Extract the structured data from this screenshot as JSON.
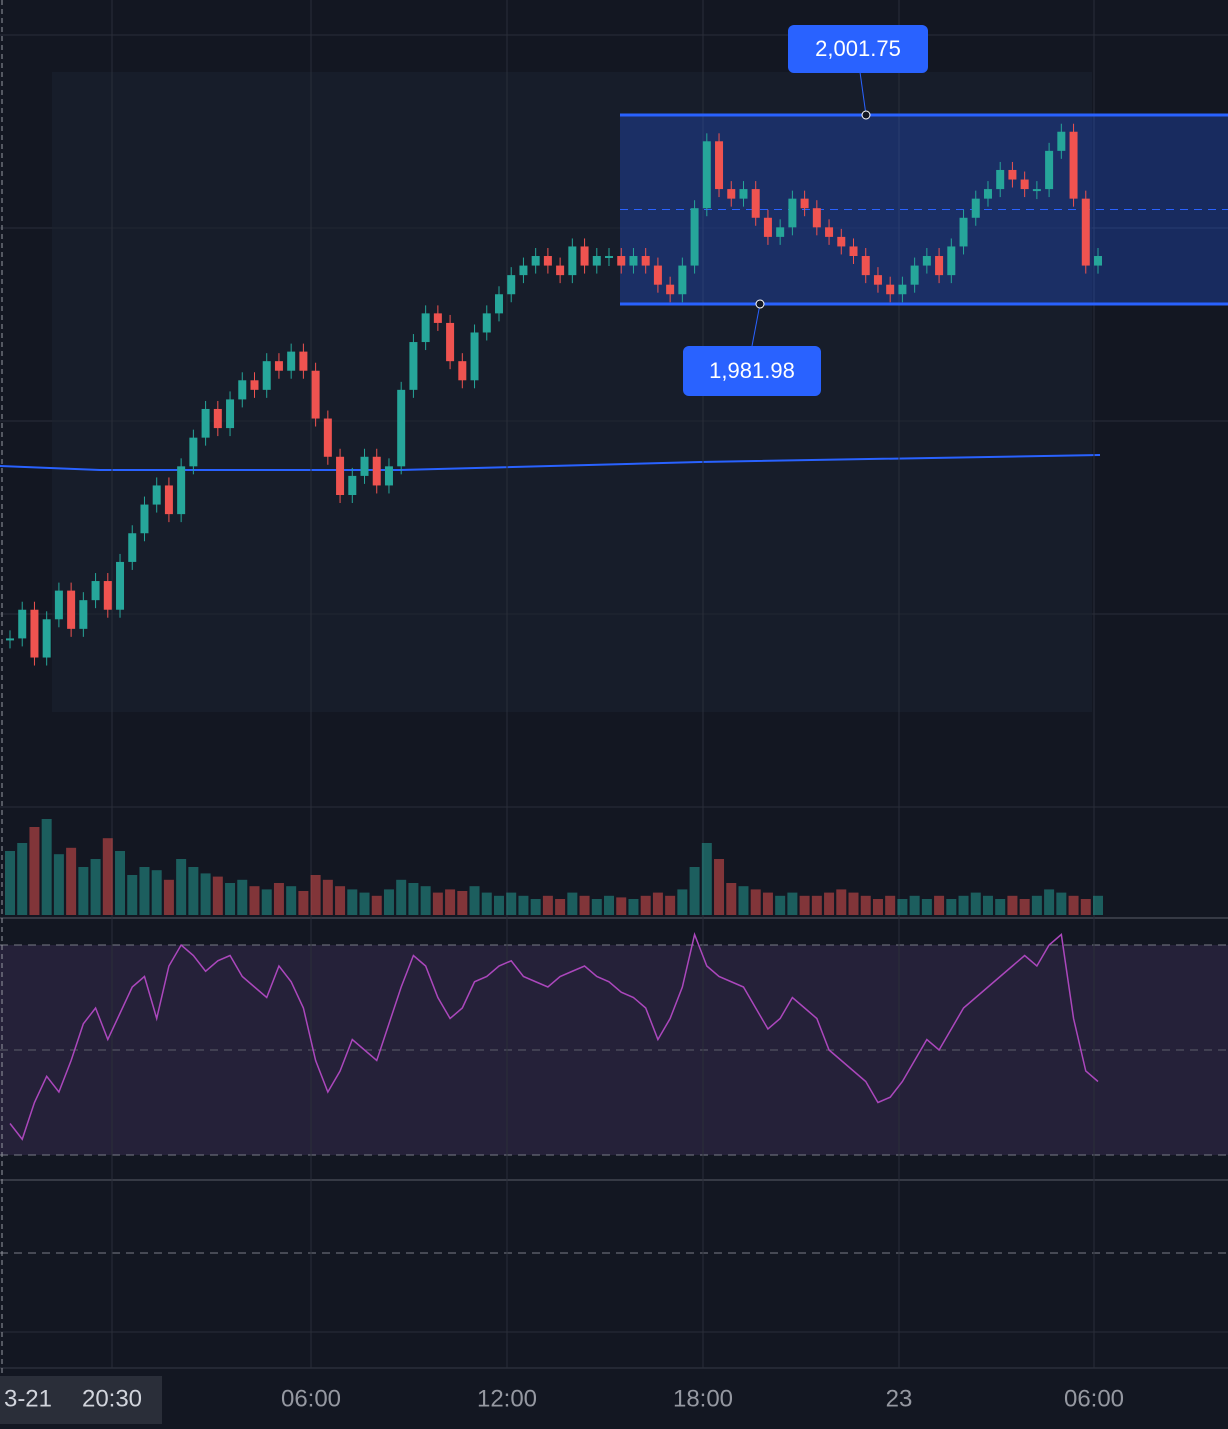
{
  "range_box": {
    "high": {
      "value": 2001.75,
      "label": "2,001.75"
    },
    "low": {
      "value": 1981.98,
      "label": "1,981.98"
    }
  },
  "time_axis": [
    "3-21",
    "20:30",
    "06:00",
    "12:00",
    "18:00",
    "23",
    "06:00"
  ],
  "closes": [
    1947,
    1950,
    1945,
    1949,
    1952,
    1948,
    1951,
    1953,
    1950,
    1955,
    1958,
    1961,
    1963,
    1960,
    1965,
    1968,
    1971,
    1969,
    1972,
    1974,
    1973,
    1976,
    1975,
    1977,
    1975,
    1970,
    1966,
    1962,
    1964,
    1966,
    1963,
    1965,
    1973,
    1978,
    1981,
    1980,
    1976,
    1974,
    1979,
    1981,
    1983,
    1985,
    1986,
    1987,
    1986,
    1985,
    1988,
    1986,
    1987,
    1987,
    1986,
    1987,
    1986,
    1984,
    1983,
    1986,
    1992,
    1999,
    1994,
    1993,
    1994,
    1991,
    1989,
    1990,
    1993,
    1992,
    1990,
    1989,
    1988,
    1987,
    1985,
    1984,
    1983,
    1984,
    1986,
    1987,
    1985,
    1988,
    1991,
    1993,
    1994,
    1996,
    1995,
    1994,
    1994,
    1998,
    2000,
    1993,
    1986,
    1987
  ],
  "volumes": [
    40,
    45,
    55,
    60,
    38,
    42,
    30,
    35,
    48,
    40,
    25,
    30,
    28,
    22,
    35,
    30,
    26,
    24,
    20,
    22,
    18,
    16,
    20,
    18,
    15,
    25,
    22,
    18,
    16,
    14,
    12,
    16,
    22,
    20,
    18,
    14,
    16,
    15,
    18,
    14,
    12,
    14,
    12,
    10,
    12,
    10,
    14,
    12,
    10,
    12,
    11,
    10,
    12,
    14,
    12,
    16,
    30,
    45,
    35,
    20,
    18,
    16,
    14,
    12,
    14,
    12,
    12,
    14,
    16,
    14,
    12,
    10,
    12,
    10,
    12,
    10,
    12,
    10,
    12,
    14,
    12,
    10,
    12,
    10,
    12,
    16,
    14,
    12,
    10,
    12
  ],
  "rsi": [
    36,
    33,
    40,
    45,
    42,
    48,
    55,
    58,
    52,
    57,
    62,
    64,
    56,
    66,
    70,
    68,
    65,
    67,
    68,
    64,
    62,
    60,
    66,
    63,
    58,
    48,
    42,
    46,
    52,
    50,
    48,
    55,
    62,
    68,
    66,
    60,
    56,
    58,
    63,
    64,
    66,
    67,
    64,
    63,
    62,
    64,
    65,
    66,
    64,
    63,
    61,
    60,
    58,
    52,
    56,
    62,
    72,
    66,
    64,
    63,
    62,
    58,
    54,
    56,
    60,
    58,
    56,
    50,
    48,
    46,
    44,
    40,
    41,
    44,
    48,
    52,
    50,
    54,
    58,
    60,
    62,
    64,
    66,
    68,
    66,
    70,
    72,
    56,
    46,
    44
  ]
}
